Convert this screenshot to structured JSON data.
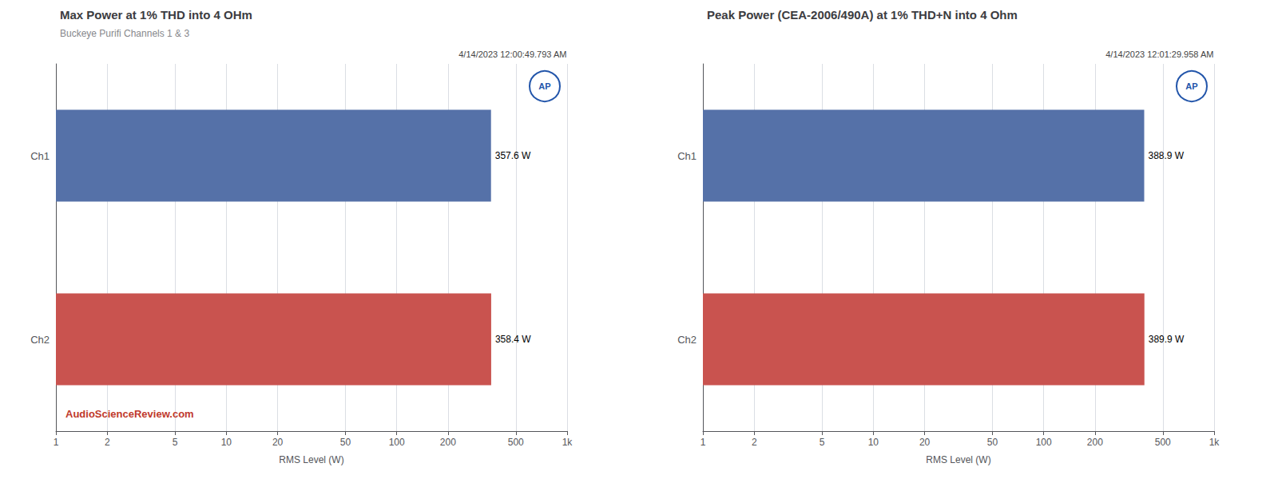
{
  "chart_data": [
    {
      "type": "bar",
      "orientation": "horizontal",
      "title": "Max Power at 1% THD into 4 OHm",
      "subtitle": "Buckeye Purifi Channels 1 & 3",
      "annotations": [
        "4/14/2023 12:00:49.793 AM",
        "AP",
        "AudioScienceReview.com"
      ],
      "categories": [
        "Ch1",
        "Ch2"
      ],
      "values": [
        357.6,
        358.4
      ],
      "value_labels": [
        "357.6 W",
        "358.4 W"
      ],
      "data_labels": true,
      "colors": [
        "#5571a8",
        "#c9534f"
      ],
      "xlabel": "RMS Level (W)",
      "log": "x",
      "xlim": [
        1,
        1000
      ],
      "xticks": [
        1,
        2,
        5,
        10,
        20,
        50,
        100,
        200,
        500,
        {
          "value": 1000,
          "label": "1k"
        }
      ],
      "grid": true
    },
    {
      "type": "bar",
      "orientation": "horizontal",
      "title": "Peak Power (CEA-2006/490A) at 1% THD+N into 4 Ohm",
      "annotations": [
        "4/14/2023 12:01:29.958 AM",
        "AP"
      ],
      "categories": [
        "Ch1",
        "Ch2"
      ],
      "values": [
        388.9,
        389.9
      ],
      "value_labels": [
        "388.9 W",
        "389.9 W"
      ],
      "data_labels": true,
      "colors": [
        "#5571a8",
        "#c9534f"
      ],
      "xlabel": "RMS Level (W)",
      "log": "x",
      "xlim": [
        1,
        1000
      ],
      "xticks": [
        1,
        2,
        5,
        10,
        20,
        50,
        100,
        200,
        500,
        {
          "value": 1000,
          "label": "1k"
        }
      ],
      "grid": true
    }
  ]
}
